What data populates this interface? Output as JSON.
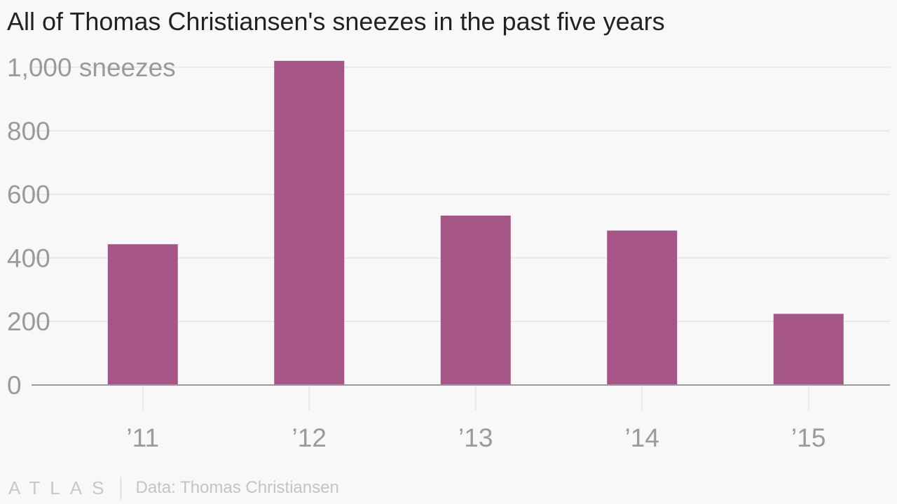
{
  "title": "All of Thomas Christiansen's sneezes in the past five years",
  "footer": {
    "logo_text": "ATLAS",
    "source": "Data: Thomas Christiansen"
  },
  "colors": {
    "bar": "#a65686",
    "grid": "#e4e4e4",
    "axis": "#9a9a9a",
    "tick_text": "#9a9a9a"
  },
  "chart_data": {
    "type": "bar",
    "categories": [
      "’11",
      "’12",
      "’13",
      "’14",
      "’15"
    ],
    "values": [
      443,
      1020,
      533,
      486,
      224
    ],
    "y_ticks": [
      0,
      200,
      400,
      600,
      800,
      1000
    ],
    "y_tick_labels": [
      "0",
      "200",
      "400",
      "600",
      "800",
      "1,000 sneezes"
    ],
    "ylim": [
      0,
      1000
    ],
    "grid": true,
    "legend": "none"
  }
}
